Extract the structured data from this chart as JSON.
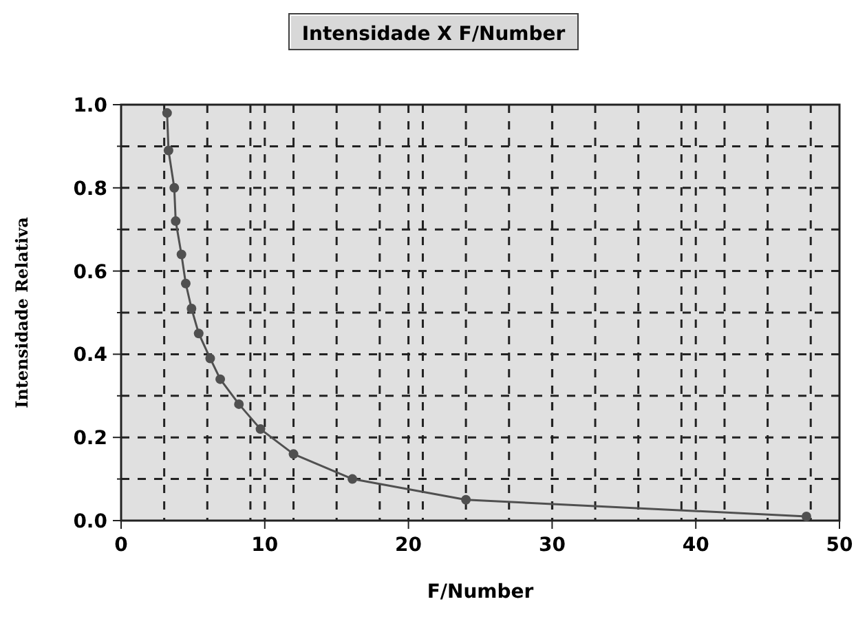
{
  "chart_data": {
    "type": "line",
    "title": "Intensidade X F/Number",
    "xlabel": "F/Number",
    "ylabel": "Intensidade Relativa",
    "x": [
      3.2,
      3.3,
      3.7,
      3.8,
      4.2,
      4.5,
      4.9,
      5.4,
      6.2,
      6.9,
      8.2,
      9.7,
      12.0,
      16.1,
      24.0,
      47.7
    ],
    "series": [
      {
        "color": "#505050",
        "values": [
          0.98,
          0.89,
          0.8,
          0.72,
          0.64,
          0.57,
          0.51,
          0.45,
          0.39,
          0.34,
          0.28,
          0.22,
          0.16,
          0.1,
          0.05,
          0.01
        ]
      }
    ],
    "marker": "circle",
    "line_style": "solid",
    "grid": true,
    "xlim": [
      0,
      50
    ],
    "ylim": [
      0,
      1
    ],
    "xticks": [
      0,
      10,
      20,
      30,
      40,
      50,
      {
        "value": 3,
        "label": null
      },
      {
        "value": 6,
        "label": null
      },
      {
        "value": 9,
        "label": null
      },
      {
        "value": 12,
        "label": null
      },
      {
        "value": 15,
        "label": null
      },
      {
        "value": 18,
        "label": null
      },
      {
        "value": 21,
        "label": null
      },
      {
        "value": 24,
        "label": null
      },
      {
        "value": 27,
        "label": null
      },
      {
        "value": 30.01,
        "label": null
      },
      {
        "value": 33,
        "label": null
      },
      {
        "value": 36,
        "label": null
      },
      {
        "value": 39,
        "label": null
      },
      {
        "value": 42,
        "label": null
      },
      {
        "value": 45,
        "label": null
      },
      {
        "value": 48,
        "label": null
      }
    ],
    "yticks": [
      {
        "value": 0,
        "label": "0.0"
      },
      0.2,
      0.4,
      0.6,
      0.8,
      {
        "value": 1,
        "label": "1.0"
      },
      {
        "value": 0.1,
        "label": null
      },
      {
        "value": 0.3,
        "label": null
      },
      {
        "value": 0.5,
        "label": null
      },
      {
        "value": 0.7,
        "label": null
      },
      {
        "value": 0.9,
        "label": null
      }
    ]
  }
}
